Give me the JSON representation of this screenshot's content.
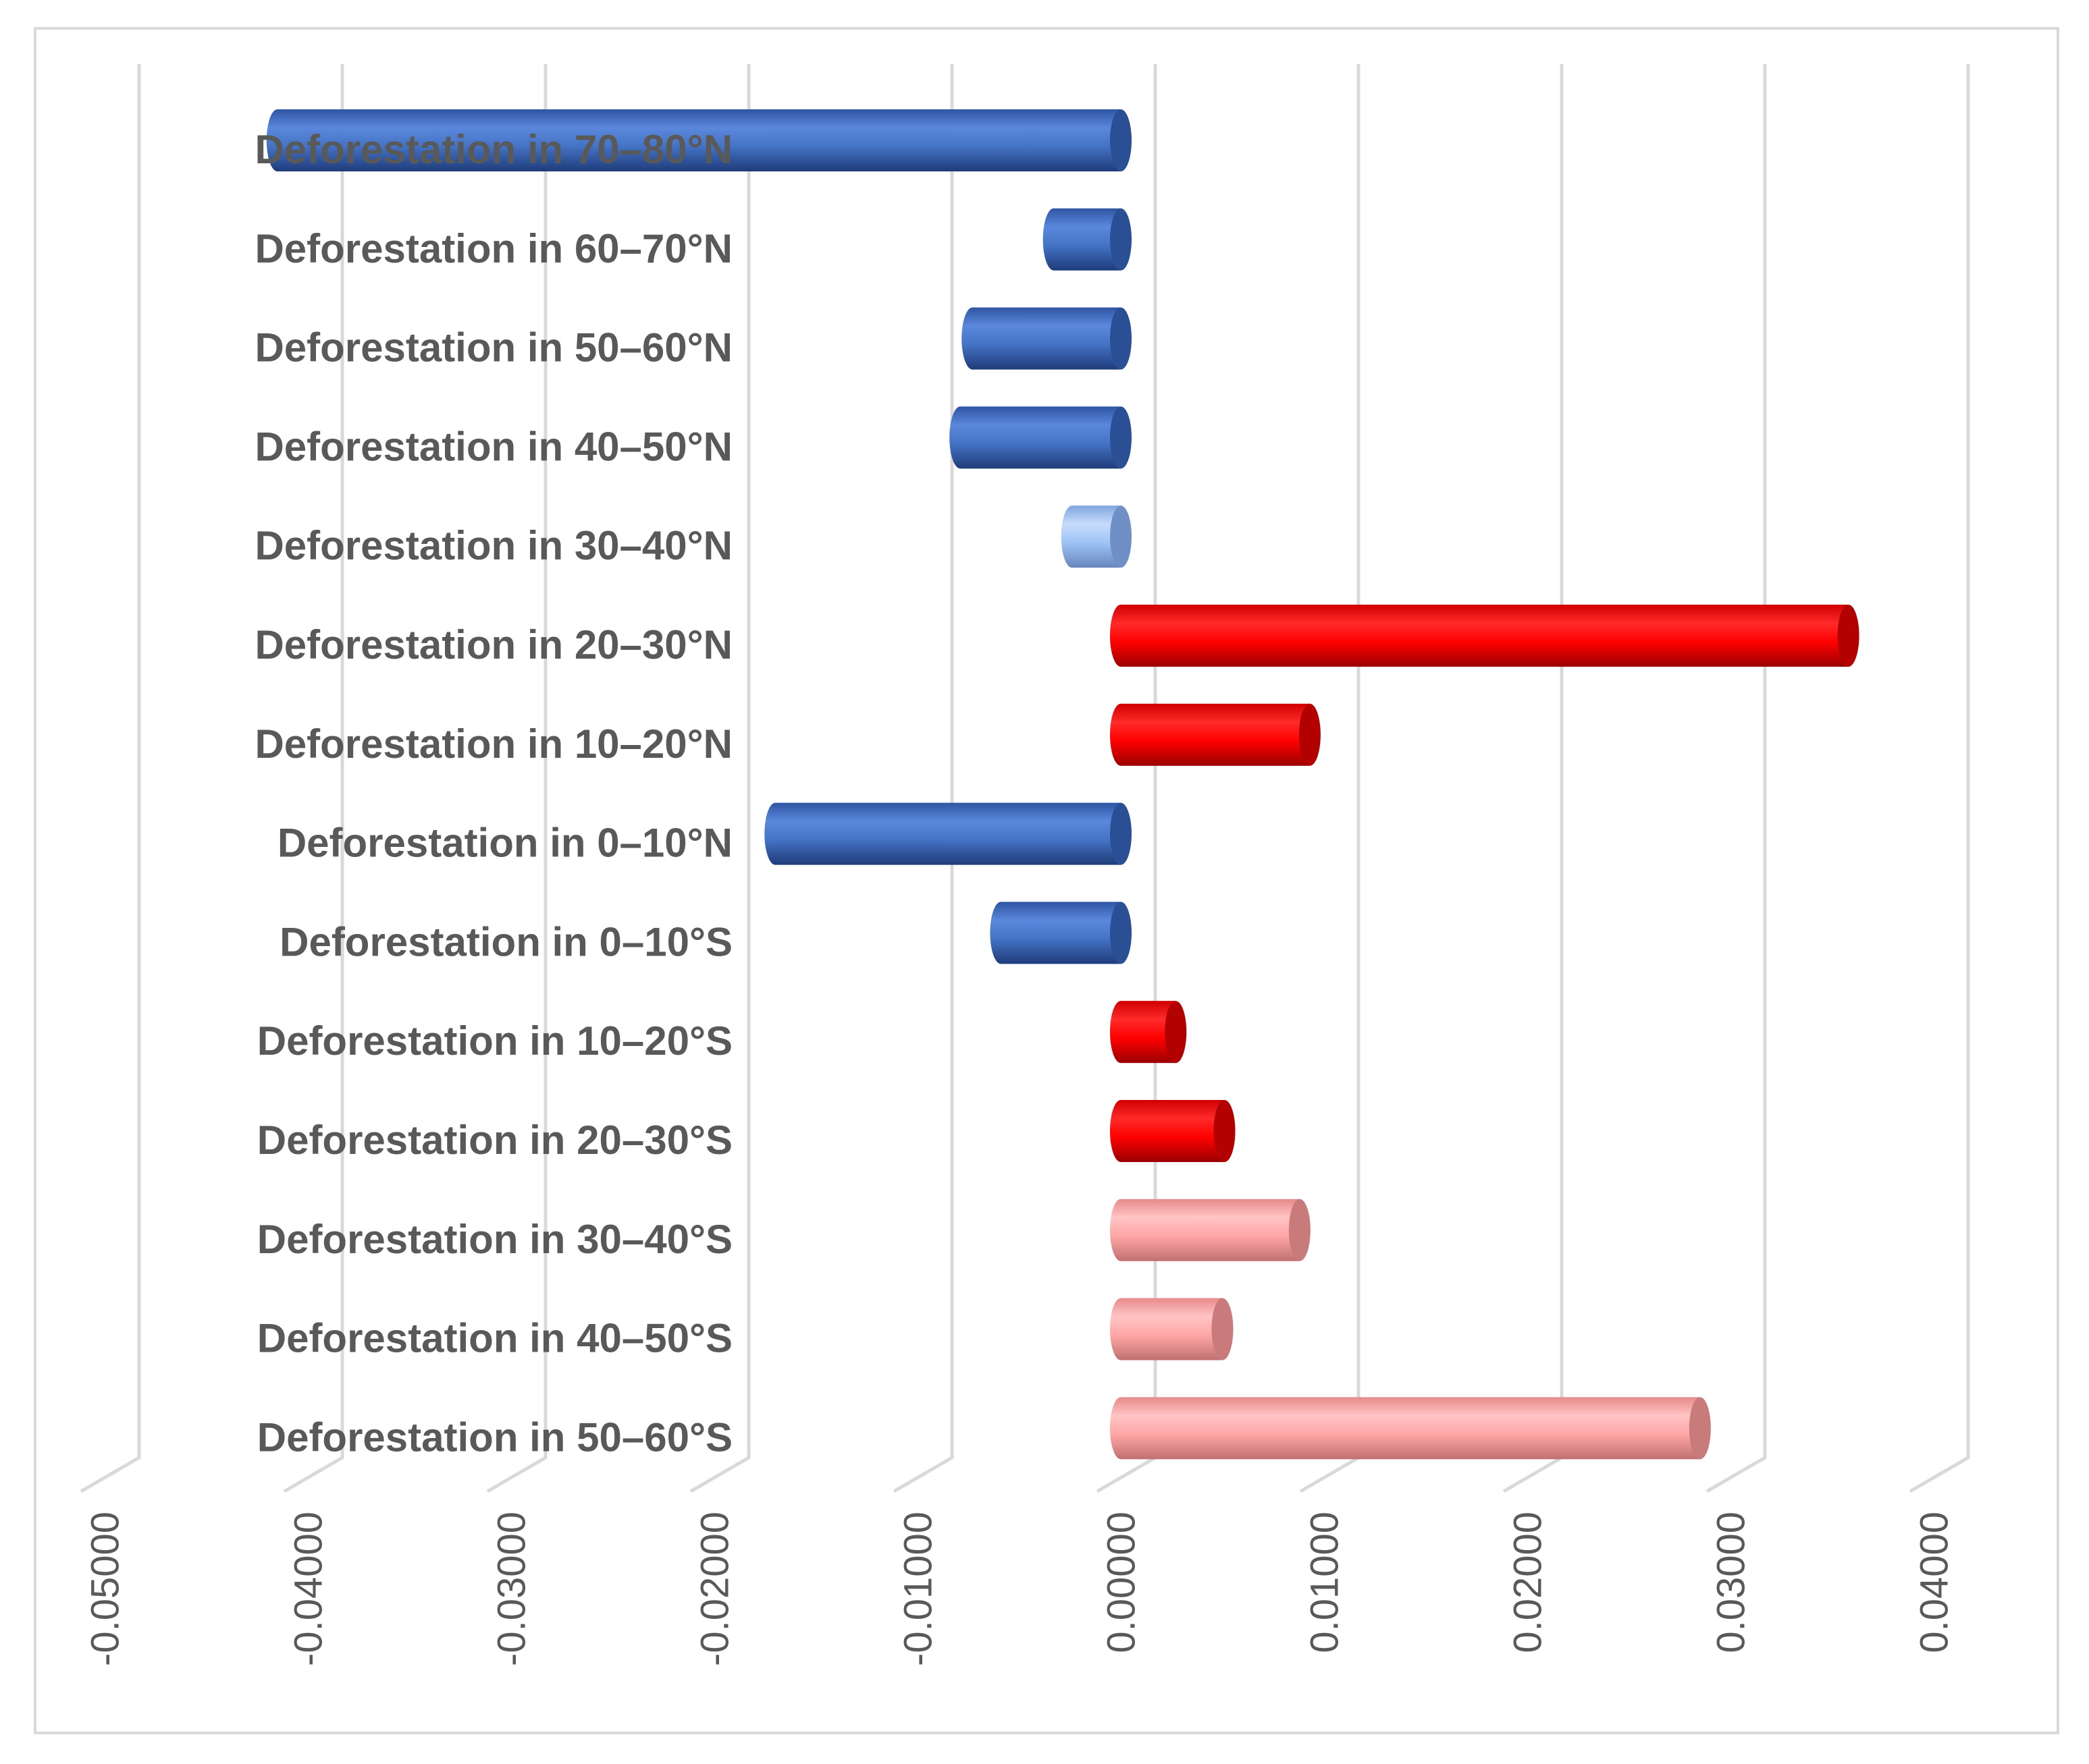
{
  "chart_data": {
    "type": "bar",
    "orientation": "horizontal",
    "title": "",
    "xlabel": "",
    "ylabel": "",
    "xlim": [
      -0.05,
      0.04
    ],
    "xticks": [
      -0.05,
      -0.04,
      -0.03,
      -0.02,
      -0.01,
      0.0,
      0.01,
      0.02,
      0.03,
      0.04
    ],
    "xtick_labels": [
      "-0.05000",
      "-0.04000",
      "-0.03000",
      "-0.02000",
      "-0.01000",
      "0.00000",
      "0.01000",
      "0.02000",
      "0.03000",
      "0.04000"
    ],
    "grid": true,
    "categories": [
      "Deforestation in 70–80°N",
      "Deforestation in 60–70°N",
      "Deforestation in 50–60°N",
      "Deforestation in 40–50°N",
      "Deforestation in 30–40°N",
      "Deforestation in 20–30°N",
      "Deforestation in 10–20°N",
      "Deforestation in 0–10°N",
      "Deforestation in 0–10°S",
      "Deforestation in 10–20°S",
      "Deforestation in 20–30°S",
      "Deforestation in 30–40°S",
      "Deforestation in 40–50°S",
      "Deforestation in 50–60°S"
    ],
    "values": [
      -0.0415,
      -0.0033,
      -0.0073,
      -0.0079,
      -0.0024,
      0.0358,
      0.0093,
      -0.017,
      -0.0059,
      0.0027,
      0.0051,
      0.0088,
      0.005,
      0.0285
    ],
    "bar_colors": [
      "#4472c4",
      "#4472c4",
      "#4472c4",
      "#4472c4",
      "#9dc3f7",
      "#ff0000",
      "#ff0000",
      "#4472c4",
      "#4472c4",
      "#ff0000",
      "#ff0000",
      "#ffa6a6",
      "#ffa6a6",
      "#ffa6a6"
    ]
  }
}
